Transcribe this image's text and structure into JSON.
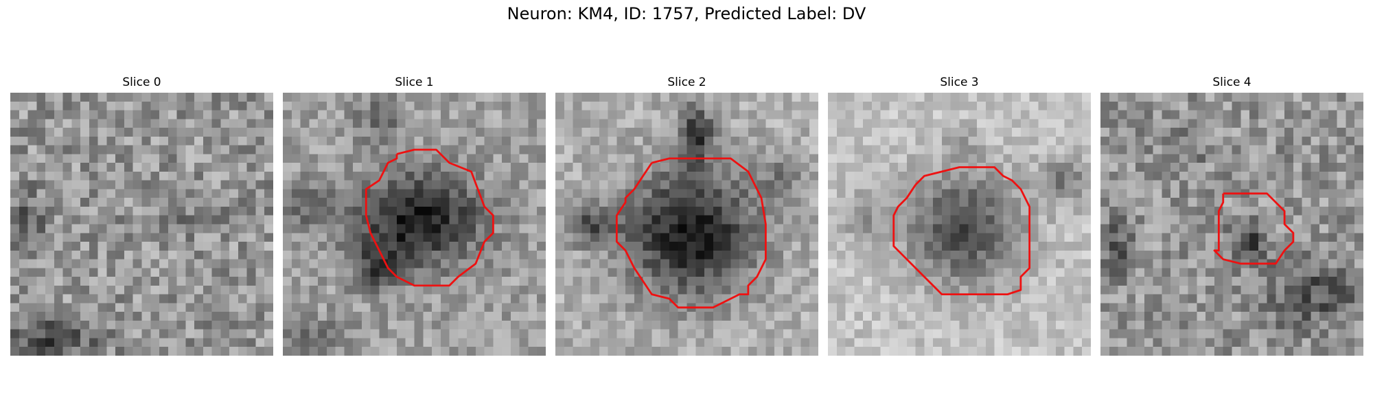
{
  "figure": {
    "title": "Neuron: KM4, ID: 1757, Predicted Label: DV"
  },
  "panels": [
    {
      "title": "Slice 0",
      "contour_shown": false
    },
    {
      "title": "Slice 1",
      "contour_shown": true
    },
    {
      "title": "Slice 2",
      "contour_shown": true
    },
    {
      "title": "Slice 3",
      "contour_shown": true
    },
    {
      "title": "Slice 4",
      "contour_shown": true
    }
  ],
  "colors": {
    "contour": "#ee1111",
    "colormap": "grayscale"
  }
}
